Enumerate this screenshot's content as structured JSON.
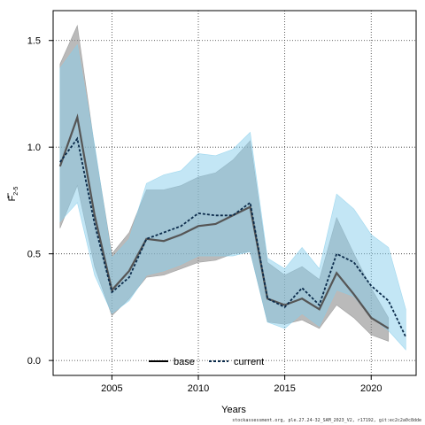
{
  "chart_data": {
    "type": "line",
    "xlabel": "Years",
    "ylabel_main": "F",
    "ylabel_sub": "2-5",
    "xlim": [
      2001.6,
      2022.6
    ],
    "ylim": [
      -0.07,
      1.64
    ],
    "x_ticks": [
      2005,
      2010,
      2015,
      2020
    ],
    "y_ticks": [
      0.0,
      0.5,
      1.0,
      1.5
    ],
    "x_tick_labels": [
      "2005",
      "2010",
      "2015",
      "2020"
    ],
    "y_tick_labels": [
      "0.0",
      "0.5",
      "1.0",
      "1.5"
    ],
    "grid": true,
    "legend_position": "bottom",
    "colors": {
      "base_line": "#000000",
      "base_band": "#8c8c8c",
      "current_line": "#0a2a4a",
      "current_band": "#87ceeb"
    },
    "series": [
      {
        "name": "base",
        "x": [
          2002,
          2003,
          2004,
          2005,
          2006,
          2007,
          2008,
          2009,
          2010,
          2011,
          2012,
          2013,
          2014,
          2015,
          2016,
          2017,
          2018,
          2019,
          2020,
          2021
        ],
        "values": [
          0.91,
          1.14,
          0.68,
          0.33,
          0.42,
          0.57,
          0.56,
          0.59,
          0.63,
          0.64,
          0.68,
          0.72,
          0.29,
          0.26,
          0.29,
          0.24,
          0.41,
          0.31,
          0.2,
          0.15
        ],
        "upper": [
          1.39,
          1.57,
          1.0,
          0.5,
          0.6,
          0.8,
          0.8,
          0.82,
          0.86,
          0.88,
          0.94,
          1.03,
          0.46,
          0.4,
          0.44,
          0.38,
          0.67,
          0.5,
          0.34,
          0.2
        ],
        "lower": [
          0.62,
          0.82,
          0.44,
          0.21,
          0.29,
          0.39,
          0.4,
          0.43,
          0.46,
          0.47,
          0.5,
          0.51,
          0.18,
          0.17,
          0.19,
          0.15,
          0.26,
          0.2,
          0.12,
          0.09
        ]
      },
      {
        "name": "current",
        "x": [
          2002,
          2003,
          2004,
          2005,
          2006,
          2007,
          2008,
          2009,
          2010,
          2011,
          2012,
          2013,
          2014,
          2015,
          2016,
          2017,
          2018,
          2019,
          2020,
          2021,
          2022
        ],
        "values": [
          0.93,
          1.04,
          0.64,
          0.32,
          0.39,
          0.57,
          0.6,
          0.63,
          0.69,
          0.68,
          0.68,
          0.74,
          0.29,
          0.25,
          0.34,
          0.26,
          0.5,
          0.46,
          0.35,
          0.28,
          0.11
        ],
        "upper": [
          1.37,
          1.48,
          1.01,
          0.48,
          0.57,
          0.83,
          0.87,
          0.89,
          0.97,
          0.96,
          0.99,
          1.07,
          0.48,
          0.43,
          0.53,
          0.43,
          0.78,
          0.71,
          0.59,
          0.53,
          0.24
        ],
        "lower": [
          0.65,
          0.74,
          0.4,
          0.22,
          0.28,
          0.4,
          0.42,
          0.45,
          0.49,
          0.49,
          0.49,
          0.51,
          0.18,
          0.15,
          0.22,
          0.16,
          0.33,
          0.3,
          0.2,
          0.14,
          0.05
        ]
      }
    ]
  },
  "footer": "stockassessment.org, ple.27.24-32_SAM_2023_V2, r17192, git:ec2c2a0c8dde"
}
